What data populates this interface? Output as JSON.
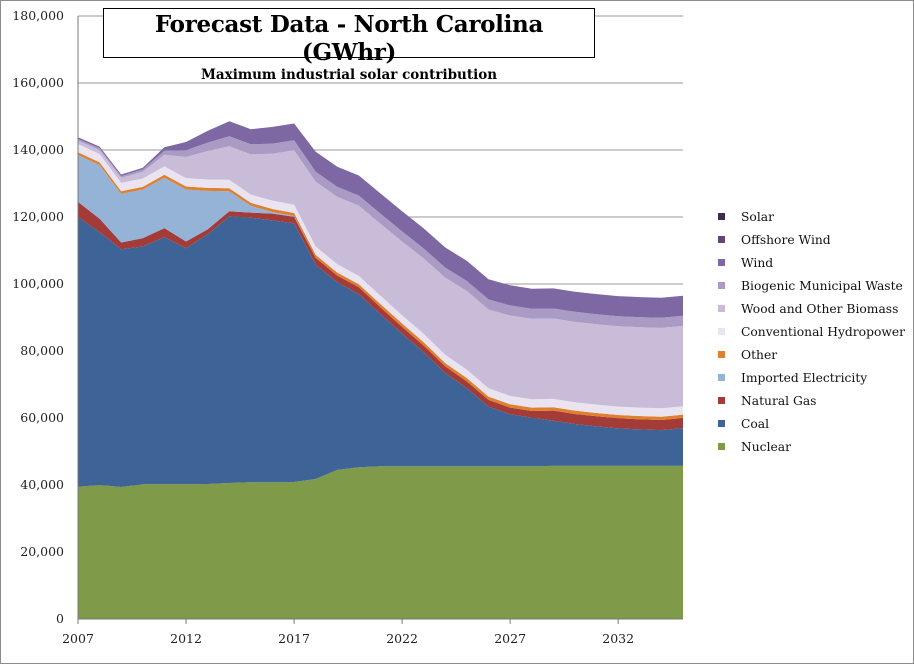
{
  "chart_data": {
    "type": "area",
    "stacked": true,
    "title": "Forecast Data - North Carolina (GWhr)",
    "subtitle": "Maximum industrial solar contribution",
    "xlabel": "",
    "ylabel": "",
    "x": [
      2007,
      2008,
      2009,
      2010,
      2011,
      2012,
      2013,
      2014,
      2015,
      2016,
      2017,
      2018,
      2019,
      2020,
      2021,
      2022,
      2023,
      2024,
      2025,
      2026,
      2027,
      2028,
      2029,
      2030,
      2031,
      2032,
      2033,
      2034,
      2035
    ],
    "xlim": [
      2007,
      2035
    ],
    "x_ticks": [
      "2007",
      "2012",
      "2017",
      "2022",
      "2027",
      "2032"
    ],
    "x_tick_values": [
      2007,
      2012,
      2017,
      2022,
      2027,
      2032
    ],
    "ylim": [
      0,
      180000
    ],
    "y_ticks": [
      "0",
      "20,000",
      "40,000",
      "60,000",
      "80,000",
      "100,000",
      "120,000",
      "140,000",
      "160,000",
      "180,000"
    ],
    "y_tick_values": [
      0,
      20000,
      40000,
      60000,
      80000,
      100000,
      120000,
      140000,
      160000,
      180000
    ],
    "grid": "horizontal",
    "legend_position": "right",
    "series": [
      {
        "name": "Nuclear",
        "color": "#7f9a48",
        "values": [
          39500,
          40000,
          39400,
          40200,
          40200,
          40200,
          40300,
          40600,
          40800,
          40800,
          40900,
          41800,
          44500,
          45300,
          45600,
          45600,
          45600,
          45600,
          45600,
          45600,
          45600,
          45600,
          45700,
          45700,
          45700,
          45700,
          45700,
          45700,
          45700
        ]
      },
      {
        "name": "Coal",
        "color": "#3e6497",
        "values": [
          80500,
          75500,
          71000,
          71000,
          73800,
          70500,
          74500,
          79600,
          79000,
          78200,
          77200,
          64000,
          56000,
          51700,
          45400,
          39600,
          34000,
          27800,
          23300,
          17800,
          15500,
          14500,
          13500,
          12500,
          11800,
          11200,
          10900,
          10700,
          11300
        ]
      },
      {
        "name": "Natural Gas",
        "color": "#a33b39",
        "values": [
          4500,
          4000,
          2000,
          2500,
          2700,
          2000,
          1500,
          1500,
          1500,
          2000,
          2000,
          2000,
          2000,
          2000,
          2000,
          2000,
          2000,
          2000,
          2000,
          2000,
          2000,
          2000,
          3000,
          3000,
          3000,
          3000,
          3000,
          3000,
          3000
        ]
      },
      {
        "name": "Imported Electricity",
        "color": "#94b3d7",
        "values": [
          14000,
          16000,
          14500,
          14500,
          15000,
          15500,
          11500,
          6000,
          2000,
          500,
          200,
          0,
          0,
          0,
          0,
          0,
          0,
          0,
          0,
          0,
          0,
          0,
          0,
          0,
          0,
          0,
          0,
          0,
          0
        ]
      },
      {
        "name": "Other",
        "color": "#e07f2d",
        "values": [
          800,
          800,
          800,
          800,
          900,
          900,
          900,
          900,
          900,
          900,
          900,
          900,
          900,
          900,
          1000,
          1000,
          1000,
          1000,
          1000,
          1000,
          1000,
          1000,
          1000,
          1000,
          1000,
          1000,
          1000,
          1000,
          1000
        ]
      },
      {
        "name": "Conventional Hydropower",
        "color": "#e9e4f0",
        "values": [
          2500,
          2500,
          2500,
          2500,
          2500,
          2500,
          2500,
          2500,
          2500,
          2500,
          2500,
          2500,
          2500,
          2500,
          2500,
          2500,
          2500,
          2500,
          2500,
          2500,
          2500,
          2500,
          2500,
          2500,
          2500,
          2500,
          2500,
          2500,
          2500
        ]
      },
      {
        "name": "Wood and Other Biomass",
        "color": "#c8bcd9",
        "values": [
          1000,
          1200,
          1500,
          2000,
          3500,
          6300,
          8500,
          10000,
          12000,
          14000,
          16200,
          19300,
          20100,
          21000,
          21500,
          22000,
          22500,
          23000,
          23500,
          23500,
          24000,
          24000,
          24000,
          24000,
          24000,
          24000,
          24000,
          24000,
          24000
        ]
      },
      {
        "name": "Biogenic Municipal Waste",
        "color": "#a99bc3",
        "values": [
          500,
          500,
          500,
          700,
          1200,
          2000,
          2500,
          3000,
          3000,
          3000,
          3000,
          3000,
          3000,
          3000,
          3000,
          3000,
          3000,
          3000,
          3000,
          3000,
          3000,
          3000,
          3000,
          3000,
          3000,
          3000,
          3000,
          3000,
          3000
        ]
      },
      {
        "name": "Wind",
        "color": "#7d68a4",
        "values": [
          500,
          500,
          500,
          500,
          1000,
          2500,
          3500,
          4500,
          4500,
          5000,
          5000,
          6000,
          6000,
          6000,
          6000,
          6000,
          6000,
          6000,
          6000,
          6000,
          6000,
          6000,
          6000,
          6000,
          6000,
          6000,
          6000,
          6000,
          6000
        ]
      },
      {
        "name": "Offshore Wind",
        "color": "#5e4778",
        "values": [
          0,
          0,
          0,
          0,
          0,
          0,
          0,
          0,
          0,
          0,
          0,
          0,
          0,
          0,
          0,
          0,
          0,
          0,
          0,
          0,
          0,
          0,
          0,
          0,
          0,
          0,
          0,
          0,
          0
        ]
      },
      {
        "name": "Solar",
        "color": "#3e2c52",
        "values": [
          0,
          0,
          0,
          0,
          0,
          0,
          0,
          0,
          0,
          0,
          0,
          0,
          0,
          0,
          0,
          0,
          0,
          0,
          0,
          0,
          0,
          0,
          0,
          0,
          0,
          0,
          0,
          0,
          0
        ]
      }
    ]
  },
  "legend_order": [
    "Solar",
    "Offshore Wind",
    "Wind",
    "Biogenic Municipal Waste",
    "Wood and Other Biomass",
    "Conventional Hydropower",
    "Other",
    "Imported Electricity",
    "Natural Gas",
    "Coal",
    "Nuclear"
  ]
}
